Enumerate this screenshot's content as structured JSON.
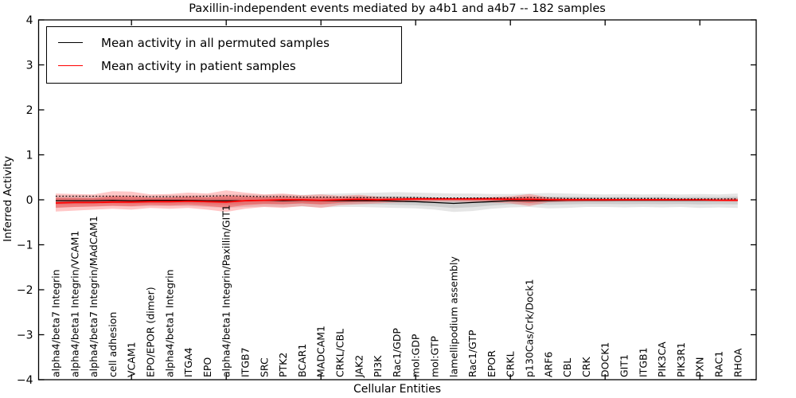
{
  "title": "Paxillin-independent events mediated by a4b1 and a4b7 -- 182 samples",
  "axes": {
    "xlabel": "Cellular Entities",
    "ylabel": "Inferred Activity",
    "ylim": [
      -4,
      4
    ],
    "yticks": [
      4,
      3,
      2,
      1,
      0,
      -1,
      -2,
      -3,
      -4
    ],
    "x_major_tick_category_indices": [
      4,
      9,
      14,
      19,
      24,
      29,
      34
    ],
    "grid": "off",
    "tick_direction": "in"
  },
  "legend": {
    "position": "upper left",
    "items": [
      {
        "label": "Mean activity in all permuted samples",
        "color": "#000000"
      },
      {
        "label": "Mean activity in patient samples",
        "color": "#ff0000"
      }
    ]
  },
  "colors": {
    "permuted_line": "#000000",
    "patient_line": "#ff0000",
    "threshold_dotted": "#000000",
    "permuted_band": "#000000",
    "patient_band": "#ff0000",
    "frame": "#000000",
    "background": "#ffffff"
  },
  "chart_data": {
    "type": "line",
    "title": "Paxillin-independent events mediated by a4b1 and a4b7 -- 182 samples",
    "xlabel": "Cellular Entities",
    "ylabel": "Inferred Activity",
    "ylim": [
      -4,
      4
    ],
    "legend_position": "upper left",
    "grid": false,
    "categories": [
      "alpha4/beta7 Integrin",
      "alpha4/beta1 Integrin/VCAM1",
      "alpha4/beta7 Integrin/MAdCAM1",
      "cell adhesion",
      "VCAM1",
      "EPO/EPOR (dimer)",
      "alpha4/beta1 Integrin",
      "ITGA4",
      "EPO",
      "alpha4/beta1 Integrin/Paxillin/GIT1",
      "ITGB7",
      "SRC",
      "PTK2",
      "BCAR1",
      "MADCAM1",
      "CRKL/CBL",
      "JAK2",
      "PI3K",
      "Rac1/GDP",
      "mol:GDP",
      "mol:GTP",
      "lamellipodium assembly",
      "Rac1/GTP",
      "EPOR",
      "CRKL",
      "p130Cas/Crk/Dock1",
      "ARF6",
      "CBL",
      "CRK",
      "DOCK1",
      "GIT1",
      "ITGB1",
      "PIK3CA",
      "PIK3R1",
      "PXN",
      "RAC1",
      "RHOA"
    ],
    "series": [
      {
        "name": "Mean activity in all permuted samples",
        "style": "solid",
        "color": "#000000",
        "values": [
          -0.02,
          -0.02,
          -0.02,
          -0.01,
          -0.02,
          -0.01,
          -0.01,
          -0.01,
          -0.02,
          -0.02,
          -0.02,
          -0.01,
          -0.02,
          -0.01,
          -0.02,
          -0.02,
          -0.02,
          -0.02,
          -0.03,
          -0.04,
          -0.06,
          -0.08,
          -0.06,
          -0.04,
          -0.02,
          -0.02,
          -0.02,
          -0.01,
          -0.01,
          -0.01,
          -0.01,
          -0.01,
          -0.01,
          -0.01,
          -0.01,
          -0.01,
          -0.01
        ]
      },
      {
        "name": "Mean activity in patient samples",
        "style": "solid",
        "color": "#ff0000",
        "values": [
          -0.07,
          -0.06,
          -0.06,
          -0.05,
          -0.05,
          -0.04,
          -0.04,
          -0.03,
          -0.04,
          -0.05,
          -0.02,
          -0.01,
          0.0,
          0.0,
          -0.01,
          0.0,
          0.01,
          0.0,
          0.01,
          0.02,
          0.02,
          0.02,
          0.02,
          0.02,
          0.01,
          0.01,
          0.0,
          0.0,
          0.0,
          0.0,
          0.0,
          0.0,
          0.0,
          0.0,
          0.0,
          -0.01,
          -0.01
        ]
      },
      {
        "name": "significance threshold (dotted)",
        "style": "dotted",
        "color": "#000000",
        "values": [
          0.08,
          0.08,
          0.08,
          0.08,
          0.08,
          0.07,
          0.07,
          0.07,
          0.08,
          0.09,
          0.08,
          0.07,
          0.07,
          0.06,
          0.06,
          0.06,
          0.05,
          0.05,
          0.05,
          0.05,
          0.04,
          0.04,
          0.04,
          0.04,
          0.04,
          0.05,
          0.04,
          0.03,
          0.03,
          0.03,
          0.03,
          0.03,
          0.03,
          0.02,
          0.02,
          0.02,
          0.02
        ]
      }
    ],
    "bands": [
      {
        "name": "permuted samples spread",
        "color": "#000000",
        "opacity": 0.1,
        "upper": [
          0.1,
          0.1,
          0.09,
          0.1,
          0.1,
          0.09,
          0.1,
          0.1,
          0.11,
          0.12,
          0.12,
          0.11,
          0.12,
          0.11,
          0.13,
          0.14,
          0.15,
          0.16,
          0.17,
          0.16,
          0.15,
          0.14,
          0.14,
          0.13,
          0.13,
          0.14,
          0.15,
          0.14,
          0.13,
          0.12,
          0.13,
          0.12,
          0.13,
          0.12,
          0.13,
          0.12,
          0.14
        ],
        "lower": [
          -0.18,
          -0.16,
          -0.15,
          -0.14,
          -0.15,
          -0.14,
          -0.14,
          -0.14,
          -0.16,
          -0.18,
          -0.16,
          -0.15,
          -0.16,
          -0.15,
          -0.17,
          -0.16,
          -0.16,
          -0.17,
          -0.18,
          -0.19,
          -0.22,
          -0.27,
          -0.25,
          -0.2,
          -0.17,
          -0.16,
          -0.19,
          -0.18,
          -0.16,
          -0.16,
          -0.17,
          -0.16,
          -0.17,
          -0.16,
          -0.18,
          -0.17,
          -0.18
        ]
      },
      {
        "name": "patient samples spread",
        "color": "#ff0000",
        "opacity": 0.22,
        "upper": [
          0.14,
          0.13,
          0.12,
          0.19,
          0.18,
          0.12,
          0.13,
          0.16,
          0.14,
          0.21,
          0.16,
          0.12,
          0.14,
          0.1,
          0.12,
          0.09,
          0.11,
          0.07,
          0.06,
          0.05,
          0.05,
          0.04,
          0.05,
          0.06,
          0.08,
          0.13,
          0.06,
          0.04,
          0.04,
          0.03,
          0.03,
          0.03,
          0.03,
          0.03,
          0.03,
          0.03,
          0.04
        ],
        "lower": [
          -0.26,
          -0.24,
          -0.22,
          -0.2,
          -0.22,
          -0.18,
          -0.2,
          -0.18,
          -0.22,
          -0.27,
          -0.2,
          -0.16,
          -0.18,
          -0.14,
          -0.18,
          -0.12,
          -0.1,
          -0.08,
          -0.06,
          -0.05,
          -0.04,
          -0.04,
          -0.05,
          -0.06,
          -0.08,
          -0.14,
          -0.06,
          -0.05,
          -0.04,
          -0.04,
          -0.03,
          -0.03,
          -0.03,
          -0.03,
          -0.03,
          -0.03,
          -0.04
        ]
      }
    ]
  }
}
